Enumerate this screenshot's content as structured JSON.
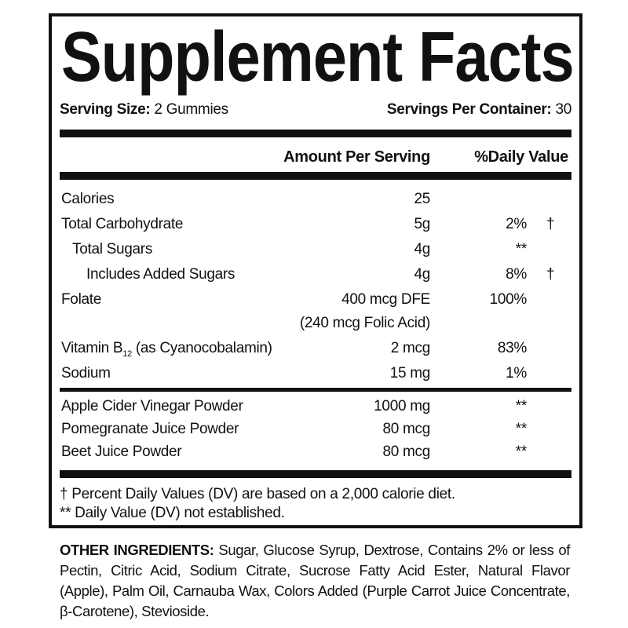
{
  "title": "Supplement Facts",
  "serving_size_label": "Serving Size:",
  "serving_size_value": "2 Gummies",
  "servings_per_container_label": "Servings Per Container:",
  "servings_per_container_value": "30",
  "header": {
    "amount": "Amount Per Serving",
    "dv": "%Daily Value"
  },
  "nutrients": [
    {
      "label": "Calories",
      "amount": "25",
      "dv": "",
      "mark": ""
    },
    {
      "label": "Total Carbohydrate",
      "amount": "5g",
      "dv": "2%",
      "mark": "†"
    },
    {
      "label": "Total Sugars",
      "amount": "4g",
      "dv": "**",
      "mark": ""
    },
    {
      "label": "Includes Added Sugars",
      "amount": "4g",
      "dv": "8%",
      "mark": "†"
    },
    {
      "label": "Folate",
      "amount": "400 mcg DFE",
      "dv": "100%",
      "mark": ""
    },
    {
      "label": "",
      "amount": "(240 mcg Folic Acid)",
      "dv": "",
      "mark": ""
    },
    {
      "label": "Vitamin B",
      "label_sub": "12",
      "label_rest": " (as Cyanocobalamin)",
      "amount": "2 mcg",
      "dv": "83%",
      "mark": ""
    },
    {
      "label": "Sodium",
      "amount": "15 mg",
      "dv": "1%",
      "mark": ""
    }
  ],
  "ingredients": [
    {
      "label": "Apple Cider Vinegar Powder",
      "amount": "1000 mg",
      "dv": "**"
    },
    {
      "label": "Pomegranate Juice Powder",
      "amount": "80 mcg",
      "dv": "**"
    },
    {
      "label": "Beet Juice Powder",
      "amount": "80 mcg",
      "dv": "**"
    }
  ],
  "footnotes": [
    "† Percent Daily Values (DV) are based on a 2,000 calorie diet.",
    "** Daily Value (DV) not established."
  ],
  "other_ingredients_label": "OTHER INGREDIENTS:",
  "other_ingredients_text": " Sugar, Glucose Syrup, Dextrose, Contains 2% or less of Pectin, Citric Acid, Sodium Citrate, Sucrose Fatty Acid Ester, Natural Flavor (Apple), Palm Oil, Carnauba Wax, Colors Added (Purple Carrot Juice Concentrate, β-Carotene), Stevioside."
}
